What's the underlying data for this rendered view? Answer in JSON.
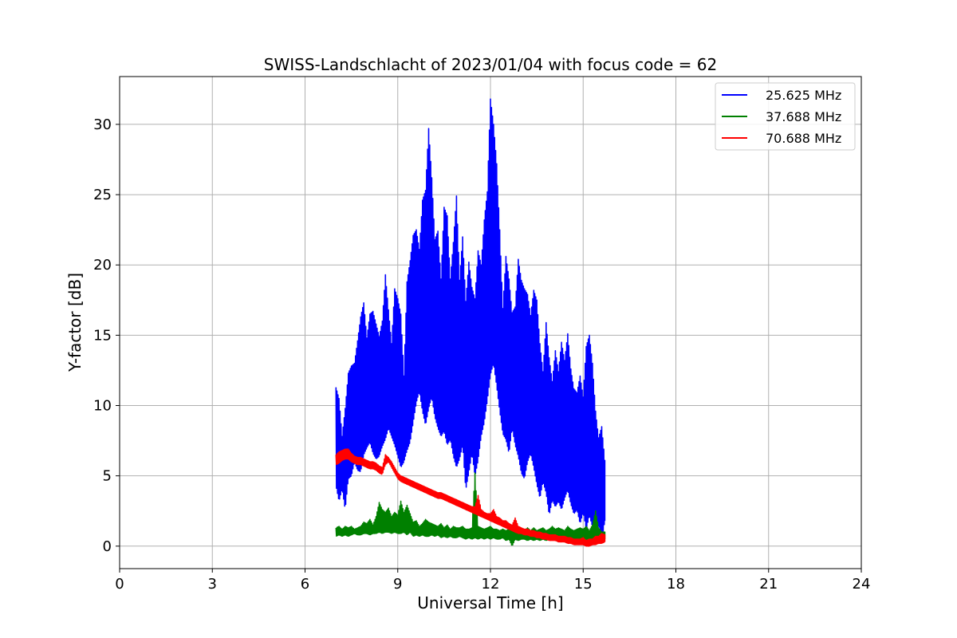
{
  "chart_data": {
    "type": "line",
    "title": "SWISS-Landschlacht of 2023/01/04 with focus code = 62",
    "xlabel": "Universal Time [h]",
    "ylabel": "Y-factor [dB]",
    "xlim": [
      0,
      24
    ],
    "ylim": [
      -1.6,
      33.4
    ],
    "xticks": [
      0,
      3,
      6,
      9,
      12,
      15,
      18,
      21,
      24
    ],
    "yticks": [
      0,
      5,
      10,
      15,
      20,
      25,
      30
    ],
    "grid": true,
    "legend_position": "top-right",
    "series": [
      {
        "name": "25.625 MHz",
        "color": "#0000ff",
        "x": [
          7.0,
          7.1,
          7.2,
          7.3,
          7.4,
          7.5,
          7.6,
          7.7,
          7.8,
          7.9,
          8.0,
          8.1,
          8.2,
          8.3,
          8.4,
          8.5,
          8.6,
          8.7,
          8.8,
          8.9,
          9.0,
          9.1,
          9.2,
          9.3,
          9.4,
          9.5,
          9.6,
          9.7,
          9.8,
          9.9,
          10.0,
          10.1,
          10.2,
          10.3,
          10.4,
          10.5,
          10.6,
          10.7,
          10.8,
          10.9,
          11.0,
          11.1,
          11.2,
          11.3,
          11.4,
          11.5,
          11.6,
          11.7,
          11.8,
          11.9,
          12.0,
          12.1,
          12.2,
          12.3,
          12.4,
          12.5,
          12.6,
          12.7,
          12.8,
          12.9,
          13.0,
          13.1,
          13.2,
          13.3,
          13.4,
          13.5,
          13.6,
          13.7,
          13.8,
          13.9,
          14.0,
          14.1,
          14.2,
          14.3,
          14.4,
          14.5,
          14.6,
          14.7,
          14.8,
          14.9,
          15.0,
          15.1,
          15.2,
          15.3,
          15.4,
          15.5,
          15.6,
          15.7
        ],
        "lower": [
          4.3,
          3.2,
          4.1,
          2.6,
          4.8,
          5.0,
          6.0,
          5.4,
          5.3,
          6.5,
          7.0,
          7.4,
          6.6,
          6.2,
          6.4,
          7.1,
          7.6,
          8.4,
          7.8,
          7.2,
          6.4,
          5.6,
          6.0,
          6.8,
          7.4,
          8.8,
          10.2,
          11.0,
          9.6,
          8.6,
          9.8,
          10.6,
          9.2,
          8.4,
          7.8,
          8.2,
          7.2,
          7.6,
          6.4,
          5.6,
          6.2,
          7.2,
          4.0,
          5.2,
          6.6,
          5.0,
          6.1,
          7.8,
          8.8,
          10.4,
          12.2,
          13.0,
          11.4,
          9.6,
          8.0,
          7.6,
          6.6,
          8.4,
          7.2,
          6.4,
          5.2,
          4.8,
          6.0,
          6.6,
          5.6,
          4.4,
          3.4,
          4.6,
          3.8,
          2.2,
          3.3,
          2.8,
          3.2,
          2.6,
          3.4,
          4.0,
          3.0,
          2.3,
          2.6,
          1.6,
          2.4,
          1.2,
          2.2,
          1.4,
          0.6,
          1.6,
          0.2,
          1.8
        ],
        "upper": [
          11.3,
          10.5,
          7.8,
          9.8,
          12.3,
          12.8,
          13.0,
          14.6,
          16.3,
          17.3,
          14.8,
          16.5,
          16.7,
          15.8,
          14.9,
          16.0,
          19.3,
          16.8,
          14.4,
          18.3,
          17.6,
          16.5,
          12.1,
          18.8,
          20.3,
          22.1,
          22.5,
          21.1,
          24.6,
          25.3,
          29.7,
          26.2,
          21.8,
          22.4,
          19.0,
          24.1,
          23.5,
          19.0,
          21.6,
          24.9,
          18.9,
          22.0,
          17.4,
          20.2,
          18.4,
          17.6,
          21.0,
          20.0,
          23.2,
          25.2,
          31.8,
          30.0,
          27.2,
          22.5,
          16.9,
          20.6,
          19.0,
          16.6,
          17.0,
          20.4,
          18.9,
          18.3,
          17.9,
          16.4,
          18.2,
          17.5,
          14.4,
          12.4,
          15.9,
          13.4,
          11.7,
          13.9,
          12.4,
          14.5,
          13.2,
          15.1,
          12.6,
          11.2,
          10.9,
          12.1,
          10.6,
          14.2,
          15.0,
          13.0,
          9.6,
          7.7,
          8.5,
          6.1
        ]
      },
      {
        "name": "37.688 MHz",
        "color": "#008000",
        "x": [
          7.0,
          7.1,
          7.2,
          7.3,
          7.4,
          7.5,
          7.6,
          7.7,
          7.8,
          7.9,
          8.0,
          8.1,
          8.2,
          8.3,
          8.4,
          8.5,
          8.6,
          8.7,
          8.8,
          8.9,
          9.0,
          9.1,
          9.2,
          9.3,
          9.4,
          9.5,
          9.6,
          9.7,
          9.8,
          9.9,
          10.0,
          10.1,
          10.2,
          10.3,
          10.4,
          10.5,
          10.6,
          10.7,
          10.8,
          10.9,
          11.0,
          11.1,
          11.2,
          11.3,
          11.4,
          11.5,
          11.6,
          11.7,
          11.8,
          11.9,
          12.0,
          12.1,
          12.2,
          12.3,
          12.4,
          12.5,
          12.6,
          12.7,
          12.8,
          12.9,
          13.0,
          13.1,
          13.2,
          13.3,
          13.4,
          13.5,
          13.6,
          13.7,
          13.8,
          13.9,
          14.0,
          14.1,
          14.2,
          14.3,
          14.4,
          14.5,
          14.6,
          14.7,
          14.8,
          14.9,
          15.0,
          15.1,
          15.2,
          15.3,
          15.4,
          15.5,
          15.6,
          15.7
        ],
        "lower": [
          0.7,
          0.8,
          0.7,
          0.8,
          0.7,
          0.8,
          0.9,
          0.8,
          0.8,
          0.9,
          0.9,
          0.8,
          0.9,
          0.9,
          1.0,
          0.9,
          1.0,
          1.0,
          0.9,
          1.0,
          0.9,
          0.9,
          1.0,
          0.8,
          1.0,
          0.7,
          0.8,
          0.7,
          0.8,
          0.7,
          0.7,
          0.8,
          0.7,
          0.8,
          0.6,
          0.7,
          0.6,
          0.7,
          0.6,
          0.6,
          0.7,
          0.6,
          0.5,
          0.6,
          0.5,
          0.6,
          0.5,
          0.6,
          0.5,
          0.6,
          0.5,
          0.6,
          0.5,
          0.5,
          0.6,
          0.4,
          0.5,
          0.0,
          0.5,
          0.4,
          0.5,
          0.5,
          0.4,
          0.5,
          0.4,
          0.5,
          0.4,
          0.5,
          0.4,
          0.5,
          0.4,
          0.5,
          0.4,
          0.4,
          0.5,
          0.4,
          0.5,
          0.4,
          0.4,
          0.5,
          0.4,
          0.5,
          0.4,
          0.4,
          0.5,
          0.4,
          0.5,
          0.5
        ],
        "upper": [
          1.3,
          1.4,
          1.2,
          1.4,
          1.3,
          1.4,
          1.2,
          1.3,
          1.4,
          1.7,
          1.6,
          1.9,
          1.5,
          2.1,
          3.1,
          2.6,
          2.4,
          2.7,
          2.1,
          2.4,
          2.2,
          3.2,
          2.4,
          2.9,
          2.3,
          1.7,
          1.8,
          1.4,
          1.6,
          1.9,
          1.7,
          1.6,
          1.5,
          1.4,
          1.6,
          1.3,
          1.5,
          1.2,
          1.4,
          1.3,
          1.3,
          1.4,
          1.2,
          1.2,
          1.3,
          5.2,
          1.4,
          1.3,
          1.2,
          1.3,
          1.4,
          1.2,
          1.2,
          1.1,
          1.2,
          1.1,
          1.2,
          1.2,
          1.1,
          1.1,
          1.2,
          1.1,
          1.3,
          1.1,
          1.3,
          1.1,
          1.2,
          1.3,
          1.1,
          1.2,
          1.4,
          1.2,
          1.3,
          1.2,
          1.1,
          1.4,
          1.2,
          1.1,
          1.2,
          1.3,
          1.2,
          1.4,
          1.1,
          1.5,
          2.5,
          1.3,
          1.0,
          1.0
        ]
      },
      {
        "name": "70.688 MHz",
        "color": "#ff0000",
        "x": [
          7.0,
          7.1,
          7.2,
          7.3,
          7.4,
          7.5,
          7.6,
          7.7,
          7.8,
          7.9,
          8.0,
          8.1,
          8.2,
          8.3,
          8.4,
          8.5,
          8.6,
          8.7,
          8.8,
          8.9,
          9.0,
          9.1,
          9.2,
          9.3,
          9.4,
          9.5,
          9.6,
          9.7,
          9.8,
          9.9,
          10.0,
          10.1,
          10.2,
          10.3,
          10.4,
          10.5,
          10.6,
          10.7,
          10.8,
          10.9,
          11.0,
          11.1,
          11.2,
          11.3,
          11.4,
          11.5,
          11.6,
          11.7,
          11.8,
          11.9,
          12.0,
          12.1,
          12.2,
          12.3,
          12.4,
          12.5,
          12.6,
          12.7,
          12.8,
          12.9,
          13.0,
          13.1,
          13.2,
          13.3,
          13.4,
          13.5,
          13.6,
          13.7,
          13.8,
          13.9,
          14.0,
          14.1,
          14.2,
          14.3,
          14.4,
          14.5,
          14.6,
          14.7,
          14.8,
          14.9,
          15.0,
          15.1,
          15.2,
          15.3,
          15.4,
          15.5,
          15.6,
          15.7
        ],
        "lower": [
          5.8,
          5.9,
          6.1,
          6.2,
          6.2,
          6.0,
          5.9,
          5.8,
          5.8,
          5.7,
          5.6,
          5.5,
          5.5,
          5.4,
          5.2,
          5.1,
          5.8,
          6.0,
          5.6,
          5.2,
          4.8,
          4.6,
          4.5,
          4.4,
          4.3,
          4.2,
          4.1,
          4.0,
          3.9,
          3.8,
          3.7,
          3.6,
          3.5,
          3.4,
          3.4,
          3.3,
          3.2,
          3.1,
          3.0,
          2.9,
          2.8,
          2.7,
          2.6,
          2.5,
          2.4,
          2.3,
          2.2,
          2.1,
          2.0,
          1.9,
          1.8,
          1.7,
          1.6,
          1.5,
          1.4,
          1.3,
          1.2,
          1.1,
          1.0,
          0.9,
          0.9,
          0.8,
          0.8,
          0.7,
          0.7,
          0.6,
          0.6,
          0.5,
          0.5,
          0.4,
          0.4,
          0.4,
          0.3,
          0.3,
          0.3,
          0.2,
          0.2,
          0.1,
          0.1,
          0.1,
          0.1,
          0.0,
          0.0,
          0.1,
          0.1,
          0.2,
          0.2,
          0.3
        ],
        "upper": [
          6.5,
          6.7,
          6.8,
          6.9,
          6.9,
          6.6,
          6.4,
          6.3,
          6.3,
          6.2,
          6.1,
          6.0,
          6.0,
          5.9,
          5.7,
          5.6,
          6.5,
          6.3,
          6.0,
          5.6,
          5.2,
          5.0,
          4.9,
          4.8,
          4.7,
          4.6,
          4.5,
          4.4,
          4.3,
          4.2,
          4.1,
          4.0,
          3.9,
          3.8,
          3.8,
          3.7,
          3.6,
          3.5,
          3.4,
          3.3,
          3.2,
          3.1,
          3.0,
          2.9,
          2.8,
          2.8,
          3.6,
          2.6,
          2.4,
          2.3,
          2.3,
          2.6,
          2.1,
          2.0,
          1.8,
          1.8,
          1.6,
          1.5,
          2.0,
          1.4,
          1.3,
          1.2,
          1.2,
          1.1,
          1.1,
          1.0,
          1.0,
          0.9,
          0.9,
          0.8,
          0.8,
          0.8,
          0.7,
          0.7,
          0.7,
          0.6,
          0.6,
          0.5,
          0.5,
          0.5,
          0.6,
          0.4,
          0.5,
          0.5,
          0.7,
          0.7,
          0.9,
          0.8
        ]
      }
    ]
  }
}
